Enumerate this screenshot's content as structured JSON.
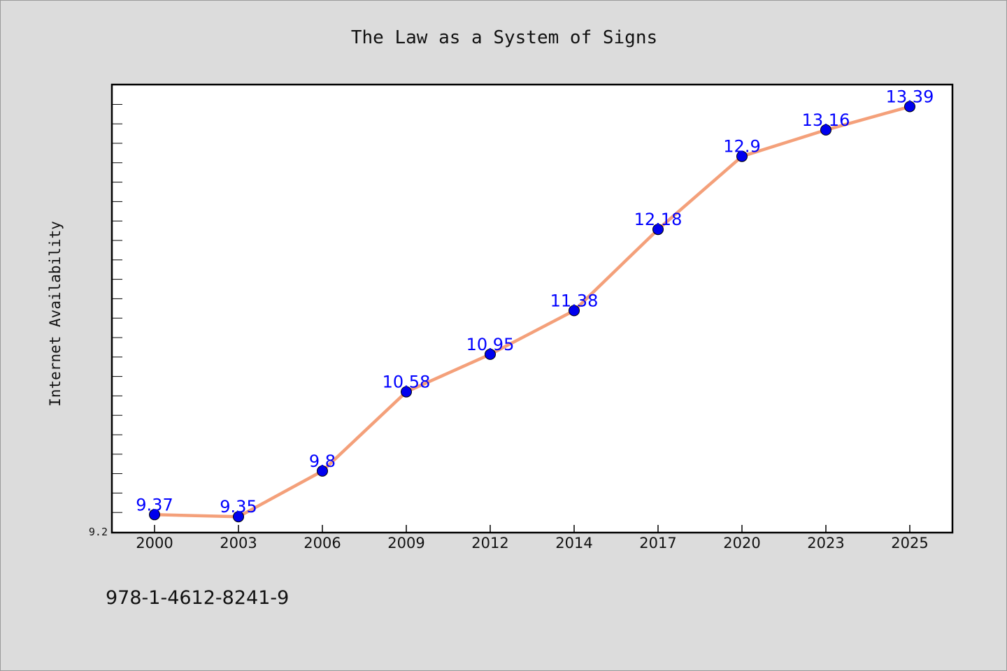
{
  "isbn": "978-1-4612-8241-9",
  "colors": {
    "line": "#f4a07a",
    "marker": "#0000ee",
    "label": "#0000ff"
  },
  "chart_data": {
    "type": "line",
    "title": "The Law as a System of Signs",
    "xlabel": "",
    "ylabel": "Internet Availability",
    "y_tick_labels": [
      "9.2"
    ],
    "ylim": [
      9.2,
      13.6
    ],
    "grid": false,
    "legend": "none",
    "categories": [
      "2000",
      "2003",
      "2006",
      "2009",
      "2012",
      "2014",
      "2017",
      "2020",
      "2023",
      "2025"
    ],
    "series": [
      {
        "values": [
          9.37,
          9.35,
          9.8,
          10.58,
          10.95,
          11.38,
          12.18,
          12.9,
          13.16,
          13.39
        ],
        "labels": [
          "9.37",
          "9.35",
          "9.8",
          "10.58",
          "10.95",
          "11.38",
          "12.18",
          "12.9",
          "13.16",
          "13.39"
        ]
      }
    ]
  }
}
